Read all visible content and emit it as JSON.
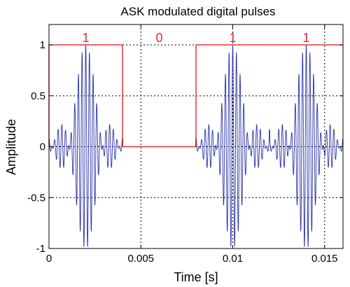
{
  "chart_data": {
    "type": "line",
    "title": "ASK modulated digital pulses",
    "xlabel": "Time [s]",
    "ylabel": "Amplitude",
    "xlim": [
      0,
      0.016
    ],
    "ylim": [
      -1,
      1.2
    ],
    "grid": true,
    "x_ticks": [
      0,
      0.005,
      0.01,
      0.015
    ],
    "x_tick_labels": [
      "0",
      "0.005",
      "0.01",
      "0.015"
    ],
    "y_ticks": [
      -1,
      -0.5,
      0,
      0.5,
      1
    ],
    "y_tick_labels": [
      "-1",
      "-0.5",
      "0",
      "0.5",
      "1"
    ],
    "bit_labels": [
      {
        "text": "1",
        "x": 0.002,
        "y": 1.07
      },
      {
        "text": "0",
        "x": 0.006,
        "y": 1.07
      },
      {
        "text": "1",
        "x": 0.01,
        "y": 1.07
      },
      {
        "text": "1",
        "x": 0.014,
        "y": 1.07
      }
    ],
    "series": [
      {
        "role": "bit-pulses",
        "color": "#e8262a",
        "bit_duration": 0.004,
        "bits": [
          1,
          0,
          1,
          1
        ],
        "x": [
          0,
          0,
          0.004,
          0.004,
          0.008,
          0.008,
          0.016
        ],
        "y": [
          0,
          1,
          1,
          0,
          0,
          1,
          1
        ]
      },
      {
        "role": "ask-modulated-carrier",
        "color": "#2b33a8",
        "carrier_frequency": 5000,
        "envelope": "sinc-shaped pulse per '1' bit, peak 1 at bit center",
        "pulse_centers": [
          0.002,
          0.01,
          0.014
        ],
        "pulse_half_width": 0.002
      }
    ]
  },
  "colors": {
    "pulse": "#e8262a",
    "carrier": "#2b33a8",
    "grid": "#000000",
    "axes": "#000000",
    "bit_label": "#e8262a"
  }
}
